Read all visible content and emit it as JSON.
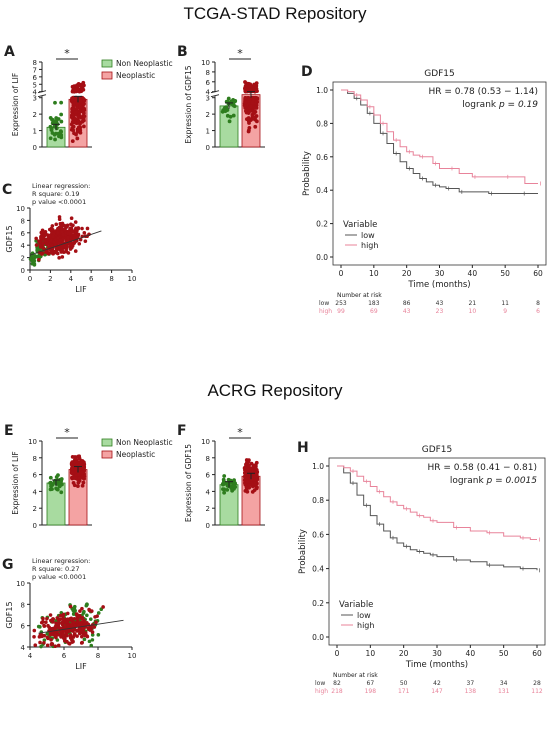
{
  "titles": {
    "top": "TCGA-STAD Repository",
    "bottom": "ACRG Repository"
  },
  "colors": {
    "non": "#2e7d1e",
    "non_fill": "#a8dba0",
    "neo": "#a50f15",
    "neo_fill": "#f4a3a3",
    "low": "#555555",
    "high": "#e8839a"
  },
  "chart_data": [
    {
      "panel": "A",
      "type": "bar",
      "ylabel": "Expression of LIF",
      "categories": [
        "Non Neoplastic",
        "Neoplastic"
      ],
      "values": [
        1.2,
        2.9
      ],
      "yticks_lower": [
        0,
        1,
        2,
        3
      ],
      "yticks_upper": [
        4,
        5,
        6,
        7,
        8
      ],
      "ylim": [
        0,
        8
      ],
      "significance": "*",
      "legend": [
        "Non Neoplastic",
        "Neoplastic"
      ]
    },
    {
      "panel": "B",
      "type": "bar",
      "ylabel": "Expression of GDF15",
      "categories": [
        "Non Neoplastic",
        "Neoplastic"
      ],
      "values": [
        2.5,
        3.4
      ],
      "yticks_lower": [
        0,
        1,
        2,
        3
      ],
      "yticks_upper": [
        4,
        6,
        8,
        10
      ],
      "ylim": [
        0,
        10
      ],
      "significance": "*"
    },
    {
      "panel": "C",
      "type": "scatter",
      "xlabel": "LIF",
      "ylabel": "GDF15",
      "xlim": [
        0,
        10
      ],
      "ylim": [
        0,
        10
      ],
      "xticks": [
        0,
        2,
        4,
        6,
        8,
        10
      ],
      "yticks": [
        0,
        2,
        4,
        6,
        8,
        10
      ],
      "annotation": [
        "Linear regression:",
        "R square: 0.19",
        "p value <0.0001"
      ],
      "fit": {
        "x": [
          0,
          7
        ],
        "y": [
          2.4,
          6.3
        ]
      }
    },
    {
      "panel": "D",
      "type": "line",
      "title": "GDF15",
      "xlabel": "Time (months)",
      "ylabel": "Probability",
      "xlim": [
        0,
        60
      ],
      "ylim": [
        0,
        1
      ],
      "xticks": [
        0,
        10,
        20,
        30,
        40,
        50,
        60
      ],
      "yticks": [
        0.0,
        0.2,
        0.4,
        0.6,
        0.8,
        1.0
      ],
      "hr": "HR = 0.78 (0.53 − 1.14)",
      "logrank_label": "logrank",
      "logrank_p": "p = 0.19",
      "legend_title": "Variable",
      "series": [
        {
          "name": "low",
          "x": [
            0,
            2,
            4,
            6,
            8,
            10,
            12,
            14,
            16,
            18,
            20,
            22,
            24,
            26,
            28,
            30,
            32,
            34,
            36,
            40,
            45,
            50,
            55,
            60
          ],
          "y": [
            1.0,
            0.98,
            0.95,
            0.91,
            0.86,
            0.8,
            0.74,
            0.68,
            0.62,
            0.57,
            0.53,
            0.5,
            0.47,
            0.45,
            0.43,
            0.42,
            0.41,
            0.41,
            0.39,
            0.39,
            0.38,
            0.38,
            0.38,
            0.38
          ]
        },
        {
          "name": "high",
          "x": [
            0,
            2,
            4,
            6,
            8,
            10,
            12,
            14,
            16,
            18,
            20,
            22,
            24,
            26,
            28,
            30,
            33,
            36,
            40,
            45,
            50,
            56,
            60
          ],
          "y": [
            1.0,
            0.99,
            0.97,
            0.94,
            0.9,
            0.85,
            0.8,
            0.75,
            0.7,
            0.66,
            0.63,
            0.61,
            0.6,
            0.6,
            0.56,
            0.53,
            0.53,
            0.5,
            0.48,
            0.48,
            0.48,
            0.44,
            0.44
          ]
        }
      ],
      "risk_table": {
        "header": "Number at risk",
        "rows": [
          {
            "name": "low",
            "values": [
              253,
              183,
              86,
              43,
              21,
              11,
              8
            ]
          },
          {
            "name": "high",
            "values": [
              99,
              69,
              43,
              23,
              10,
              9,
              6
            ]
          }
        ]
      }
    },
    {
      "panel": "E",
      "type": "bar",
      "ylabel": "Expression of LIF",
      "categories": [
        "Non Neoplastic",
        "Neoplastic"
      ],
      "values": [
        5.0,
        6.6
      ],
      "yticks": [
        0,
        2,
        4,
        6,
        8,
        10
      ],
      "ylim": [
        0,
        10
      ],
      "significance": "*",
      "legend": [
        "Non Neoplastic",
        "Neoplastic"
      ]
    },
    {
      "panel": "F",
      "type": "bar",
      "ylabel": "Expression of GDF15",
      "categories": [
        "Non Neoplastic",
        "Neoplastic"
      ],
      "values": [
        4.8,
        5.8
      ],
      "yticks": [
        0,
        2,
        4,
        6,
        8,
        10
      ],
      "ylim": [
        0,
        10
      ],
      "significance": "*"
    },
    {
      "panel": "G",
      "type": "scatter",
      "xlabel": "LIF",
      "ylabel": "GDF15",
      "xlim": [
        4,
        10
      ],
      "ylim": [
        4,
        10
      ],
      "xticks": [
        4,
        6,
        8,
        10
      ],
      "yticks": [
        4,
        6,
        8,
        10
      ],
      "annotation": [
        "Linear regression:",
        "R square: 0.27",
        "p value <0.0001"
      ],
      "fit": {
        "x": [
          4.5,
          9.5
        ],
        "y": [
          5.3,
          6.5
        ]
      }
    },
    {
      "panel": "H",
      "type": "line",
      "title": "GDF15",
      "xlabel": "Time (months)",
      "ylabel": "Probability",
      "xlim": [
        0,
        60
      ],
      "ylim": [
        0,
        1
      ],
      "xticks": [
        0,
        10,
        20,
        30,
        40,
        50,
        60
      ],
      "yticks": [
        0.0,
        0.2,
        0.4,
        0.6,
        0.8,
        1.0
      ],
      "hr": "HR = 0.58 (0.41 − 0.81)",
      "logrank_label": "logrank",
      "logrank_p": "p = 0.0015",
      "legend_title": "Variable",
      "series": [
        {
          "name": "low",
          "x": [
            0,
            2,
            4,
            6,
            8,
            10,
            12,
            14,
            16,
            18,
            20,
            22,
            24,
            26,
            28,
            30,
            35,
            40,
            45,
            50,
            55,
            58,
            60
          ],
          "y": [
            1.0,
            0.96,
            0.9,
            0.83,
            0.77,
            0.71,
            0.66,
            0.62,
            0.58,
            0.55,
            0.53,
            0.51,
            0.5,
            0.49,
            0.48,
            0.47,
            0.45,
            0.44,
            0.42,
            0.41,
            0.4,
            0.4,
            0.39
          ]
        },
        {
          "name": "high",
          "x": [
            0,
            2,
            4,
            6,
            8,
            10,
            12,
            14,
            16,
            18,
            20,
            22,
            24,
            26,
            28,
            30,
            35,
            40,
            45,
            50,
            55,
            58,
            60
          ],
          "y": [
            1.0,
            0.99,
            0.97,
            0.94,
            0.91,
            0.88,
            0.85,
            0.82,
            0.79,
            0.77,
            0.75,
            0.73,
            0.71,
            0.7,
            0.68,
            0.67,
            0.64,
            0.62,
            0.61,
            0.59,
            0.58,
            0.57,
            0.57
          ]
        }
      ],
      "risk_table": {
        "header": "Number at risk",
        "rows": [
          {
            "name": "low",
            "values": [
              82,
              67,
              50,
              42,
              37,
              34,
              28
            ]
          },
          {
            "name": "high",
            "values": [
              218,
              198,
              171,
              147,
              138,
              131,
              112
            ]
          }
        ]
      }
    }
  ]
}
